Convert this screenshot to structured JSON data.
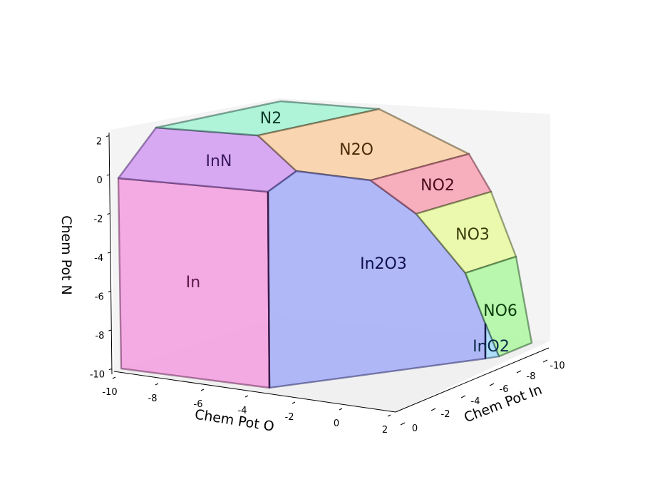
{
  "chart_data": {
    "type": "phase-diagram-3d",
    "axes": {
      "x": {
        "label": "Chem Pot In",
        "ticks": [
          "-10",
          "-8",
          "-6",
          "-4",
          "-2",
          "0"
        ]
      },
      "y": {
        "label": "Chem Pot O",
        "ticks": [
          "-10",
          "-8",
          "-6",
          "-4",
          "-2",
          "0",
          "2"
        ]
      },
      "z": {
        "label": "Chem Pot N",
        "ticks": [
          "-10",
          "-8",
          "-6",
          "-4",
          "-2",
          "0",
          "2"
        ]
      }
    },
    "regions": [
      {
        "name": "In",
        "color": "#f3a3e0"
      },
      {
        "name": "InN",
        "color": "#d4a2f2"
      },
      {
        "name": "N2",
        "color": "#a8f2d6"
      },
      {
        "name": "N2O",
        "color": "#f8d2aa"
      },
      {
        "name": "In2O3",
        "color": "#aab2f6"
      },
      {
        "name": "NO2",
        "color": "#f6a8b8"
      },
      {
        "name": "NO3",
        "color": "#e8f8a6"
      },
      {
        "name": "NO6",
        "color": "#b2f6a6"
      },
      {
        "name": "InO2",
        "color": "#a8dcf8"
      }
    ],
    "grid": false
  }
}
